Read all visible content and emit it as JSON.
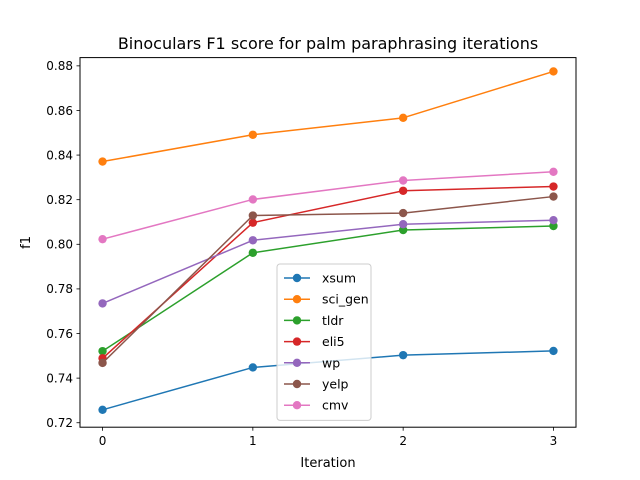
{
  "chart_data": {
    "type": "line",
    "title": "Binoculars F1 score for palm paraphrasing iterations",
    "xlabel": "Iteration",
    "ylabel": "f1",
    "x": [
      0,
      1,
      2,
      3
    ],
    "xlim": [
      -0.15,
      3.15
    ],
    "ylim": [
      0.718,
      0.8837
    ],
    "x_ticks": [
      "0",
      "1",
      "2",
      "3"
    ],
    "y_ticks": [
      0.72,
      0.74,
      0.76,
      0.78,
      0.8,
      0.82,
      0.84,
      0.86,
      0.88
    ],
    "y_tick_labels": [
      "0.72",
      "0.74",
      "0.76",
      "0.78",
      "0.80",
      "0.82",
      "0.84",
      "0.86",
      "0.88"
    ],
    "grid": false,
    "legend_position": "lower center",
    "series": [
      {
        "name": "xsum",
        "color": "#1f77b4",
        "values": [
          0.7258,
          0.7448,
          0.7503,
          0.7522
        ]
      },
      {
        "name": "sci_gen",
        "color": "#ff7f0e",
        "values": [
          0.8371,
          0.8491,
          0.8567,
          0.8775
        ]
      },
      {
        "name": "tldr",
        "color": "#2ca02c",
        "values": [
          0.7521,
          0.7962,
          0.8064,
          0.8082
        ]
      },
      {
        "name": "eli5",
        "color": "#d62728",
        "values": [
          0.7489,
          0.8097,
          0.824,
          0.8259
        ]
      },
      {
        "name": "wp",
        "color": "#9467bd",
        "values": [
          0.7735,
          0.8018,
          0.809,
          0.8108
        ]
      },
      {
        "name": "yelp",
        "color": "#8c564b",
        "values": [
          0.7468,
          0.8129,
          0.814,
          0.8214
        ]
      },
      {
        "name": "cmv",
        "color": "#e377c2",
        "values": [
          0.8023,
          0.8201,
          0.8286,
          0.8325
        ]
      }
    ]
  }
}
